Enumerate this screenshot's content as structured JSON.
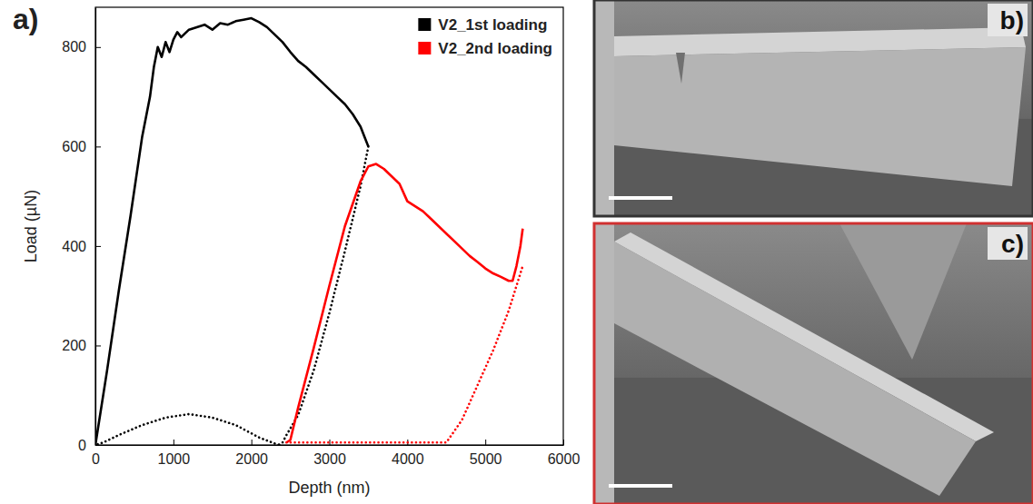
{
  "chart_data": {
    "type": "line",
    "panel_label": "a)",
    "x_label": "Depth (nm)",
    "y_label": "Load (µN)",
    "xlim": [
      0,
      6000
    ],
    "xticks": [
      0,
      1000,
      2000,
      3000,
      4000,
      5000,
      6000
    ],
    "ylim": [
      0,
      880
    ],
    "yticks": [
      0,
      200,
      400,
      600,
      800
    ],
    "legend": "upper right",
    "series": [
      {
        "name": "V2_1st loading",
        "color": "#000000",
        "line_style": "solid",
        "marker": "square",
        "x": [
          0,
          150,
          300,
          450,
          600,
          700,
          750,
          800,
          850,
          900,
          950,
          1000,
          1050,
          1100,
          1200,
          1300,
          1400,
          1500,
          1600,
          1700,
          1800,
          1900,
          2000,
          2100,
          2200,
          2300,
          2400,
          2500,
          2600,
          2700,
          2800,
          2900,
          3000,
          3100,
          3200,
          3300,
          3400,
          3450,
          3500
        ],
        "values": [
          0,
          150,
          310,
          460,
          620,
          700,
          760,
          800,
          780,
          810,
          790,
          815,
          830,
          820,
          835,
          840,
          845,
          835,
          848,
          845,
          852,
          855,
          858,
          850,
          840,
          825,
          810,
          790,
          772,
          760,
          745,
          730,
          715,
          700,
          685,
          665,
          640,
          620,
          600
        ]
      },
      {
        "name": "V2_1st loading",
        "color": "#000000",
        "line_style": "dotted",
        "marker": "square",
        "x": [
          3500,
          3400,
          3200,
          3000,
          2800,
          2600,
          2450,
          2400,
          2350
        ],
        "values": [
          600,
          520,
          390,
          265,
          150,
          60,
          20,
          5,
          0
        ]
      },
      {
        "name": "V2_1st loading",
        "color": "#000000",
        "line_style": "dotted",
        "marker": "square",
        "x": [
          2350,
          2100,
          1800,
          1500,
          1200,
          900,
          600,
          300,
          100,
          0
        ],
        "values": [
          0,
          15,
          40,
          55,
          62,
          55,
          40,
          20,
          5,
          0
        ]
      },
      {
        "name": "V2_2nd loading",
        "color": "#ff0000",
        "line_style": "solid",
        "marker": "square",
        "x": [
          2450,
          2500,
          2600,
          2800,
          3000,
          3200,
          3400,
          3500,
          3600,
          3700,
          3800,
          3900,
          4000,
          4100,
          4200,
          4300,
          4400,
          4500,
          4600,
          4700,
          4800,
          4900,
          5000,
          5100,
          5200,
          5300,
          5350,
          5400,
          5450,
          5480
        ],
        "values": [
          5,
          10,
          75,
          195,
          320,
          440,
          530,
          560,
          565,
          555,
          540,
          525,
          490,
          480,
          470,
          455,
          440,
          425,
          410,
          395,
          380,
          368,
          355,
          345,
          338,
          330,
          330,
          360,
          400,
          435
        ]
      },
      {
        "name": "V2_2nd loading",
        "color": "#ff0000",
        "line_style": "dotted",
        "marker": "square",
        "x": [
          2450,
          3000,
          3500,
          4000,
          4500,
          4700,
          4900,
          5100,
          5300,
          5480
        ],
        "values": [
          5,
          5,
          5,
          5,
          5,
          50,
          120,
          190,
          270,
          360
        ]
      }
    ]
  },
  "images": [
    {
      "label": "b)"
    },
    {
      "label": "c)"
    }
  ]
}
